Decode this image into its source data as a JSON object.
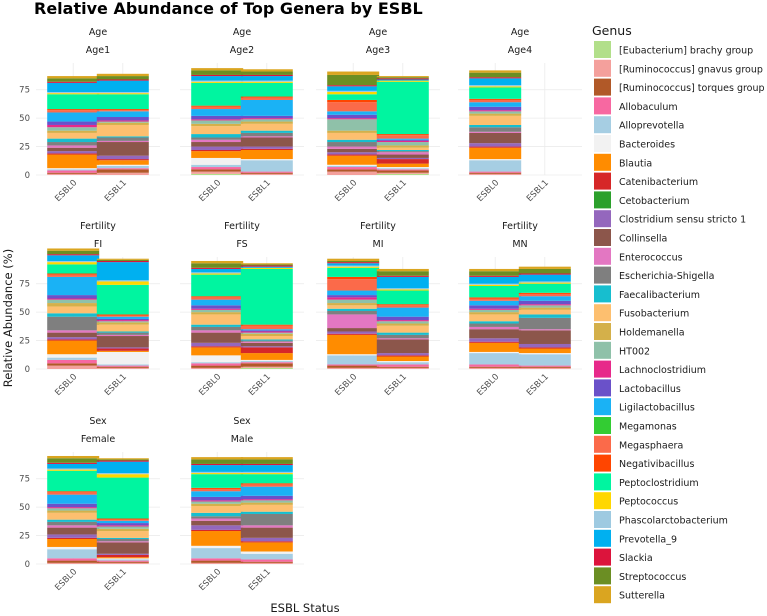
{
  "chart_data": {
    "type": "bar",
    "stacked": true,
    "title": "Relative Abundance of Top Genera by ESBL",
    "xlabel": "ESBL Status",
    "ylabel": "Relative Abundance (%)",
    "y_ticks": [
      0,
      25,
      50,
      75
    ],
    "categories": [
      "ESBL0",
      "ESBL1"
    ],
    "legend_title": "Genus",
    "genera": [
      {
        "name": "[Eubacterium] brachy group",
        "color": "#b2df8a"
      },
      {
        "name": "[Ruminococcus] gnavus group",
        "color": "#f4a09c"
      },
      {
        "name": "[Ruminococcus] torques group",
        "color": "#b15928"
      },
      {
        "name": "Allobaculum",
        "color": "#f768a1"
      },
      {
        "name": "Alloprevotella",
        "color": "#a6cee3"
      },
      {
        "name": "Bacteroides",
        "color": "#f2f2f2"
      },
      {
        "name": "Blautia",
        "color": "#ff8c00"
      },
      {
        "name": "Catenibacterium",
        "color": "#d62728"
      },
      {
        "name": "Cetobacterium",
        "color": "#2ca02c"
      },
      {
        "name": "Clostridium sensu stricto 1",
        "color": "#9467bd"
      },
      {
        "name": "Collinsella",
        "color": "#8c564b"
      },
      {
        "name": "Enterococcus",
        "color": "#e377c2"
      },
      {
        "name": "Escherichia-Shigella",
        "color": "#7f7f7f"
      },
      {
        "name": "Faecalibacterium",
        "color": "#17becf"
      },
      {
        "name": "Fusobacterium",
        "color": "#fdbf6f"
      },
      {
        "name": "Holdemanella",
        "color": "#d4b04a"
      },
      {
        "name": "HT002",
        "color": "#8fc1a9"
      },
      {
        "name": "Lachnoclostridium",
        "color": "#e7298a"
      },
      {
        "name": "Lactobacillus",
        "color": "#6a51c9"
      },
      {
        "name": "Ligilactobacillus",
        "color": "#1ab2f5"
      },
      {
        "name": "Megamonas",
        "color": "#33cc33"
      },
      {
        "name": "Megasphaera",
        "color": "#fb6a4a"
      },
      {
        "name": "Negativibacillus",
        "color": "#ff4500"
      },
      {
        "name": "Peptoclostridium",
        "color": "#00f5a0"
      },
      {
        "name": "Peptococcus",
        "color": "#ffd700"
      },
      {
        "name": "Phascolarctobacterium",
        "color": "#9ecae1"
      },
      {
        "name": "Prevotella_9",
        "color": "#00b0f0"
      },
      {
        "name": "Slackia",
        "color": "#dc143c"
      },
      {
        "name": "Streptococcus",
        "color": "#6b8e23"
      },
      {
        "name": "Sutterella",
        "color": "#daa520"
      }
    ],
    "panels": [
      {
        "group": "Age",
        "level": "Age1",
        "bars": [
          {
            "category": "ESBL0",
            "values": [
              0,
              1,
              1,
              2,
              1,
              1,
              12,
              1,
              0,
              2,
              3,
              2,
              3,
              3,
              5,
              2,
              3,
              2,
              3,
              8,
              0,
              2,
              1,
              13,
              1,
              1,
              8,
              1,
              3,
              2
            ]
          },
          {
            "category": "ESBL1",
            "values": [
              0,
              2,
              3,
              1,
              2,
              1,
              4,
              1,
              0,
              3,
              12,
              1,
              3,
              1,
              10,
              2,
              1,
              1,
              3,
              5,
              0,
              1,
              1,
              13,
              1,
              1,
              10,
              1,
              3,
              2
            ]
          }
        ]
      },
      {
        "group": "Age",
        "level": "Age2",
        "bars": [
          {
            "category": "ESBL0",
            "values": [
              1,
              2,
              2,
              2,
              2,
              6,
              6,
              1,
              0,
              3,
              4,
              2,
              2,
              3,
              7,
              2,
              3,
              1,
              3,
              6,
              0,
              2,
              1,
              20,
              1,
              1,
              4,
              1,
              4,
              2
            ]
          },
          {
            "category": "ESBL1",
            "values": [
              0,
              1,
              1,
              1,
              10,
              1,
              8,
              1,
              0,
              2,
              8,
              1,
              3,
              2,
              6,
              2,
              2,
              1,
              2,
              14,
              0,
              2,
              1,
              12,
              1,
              1,
              4,
              1,
              3,
              2
            ]
          }
        ]
      },
      {
        "group": "Age",
        "level": "Age3",
        "bars": [
          {
            "category": "ESBL0",
            "values": [
              0,
              3,
              2,
              2,
              1,
              1,
              8,
              1,
              0,
              2,
              3,
              2,
              4,
              2,
              6,
              2,
              10,
              1,
              3,
              3,
              0,
              8,
              2,
              5,
              2,
              1,
              4,
              1,
              9,
              3
            ]
          },
          {
            "category": "ESBL1",
            "values": [
              1,
              1,
              2,
              1,
              1,
              1,
              3,
              4,
              0,
              1,
              3,
              2,
              1,
              1,
              2,
              2,
              3,
              1,
              1,
              1,
              0,
              3,
              1,
              46,
              1,
              0,
              1,
              1,
              1,
              1
            ]
          }
        ]
      },
      {
        "group": "Age",
        "level": "Age4",
        "bars": [
          {
            "category": "ESBL0",
            "values": [
              0,
              1,
              1,
              1,
              10,
              1,
              10,
              1,
              0,
              3,
              9,
              1,
              4,
              2,
              8,
              2,
              2,
              1,
              3,
              4,
              0,
              2,
              1,
              10,
              1,
              1,
              6,
              1,
              4,
              2
            ]
          }
        ]
      },
      {
        "group": "Fertility",
        "level": "FI",
        "bars": [
          {
            "category": "ESBL0",
            "values": [
              0,
              3,
              2,
              3,
              2,
              3,
              12,
              1,
              0,
              2,
              4,
              2,
              12,
              3,
              6,
              3,
              3,
              1,
              3,
              16,
              0,
              2,
              1,
              8,
              2,
              1,
              5,
              1,
              3,
              2
            ]
          },
          {
            "category": "ESBL1",
            "values": [
              0,
              1,
              1,
              1,
              1,
              11,
              1,
              2,
              0,
              1,
              10,
              1,
              2,
              1,
              6,
              2,
              1,
              1,
              1,
              2,
              0,
              1,
              1,
              26,
              3,
              1,
              16,
              1,
              1,
              1
            ]
          }
        ]
      },
      {
        "group": "Fertility",
        "level": "FS",
        "bars": [
          {
            "category": "ESBL0",
            "values": [
              0,
              1,
              2,
              2,
              1,
              6,
              7,
              1,
              0,
              3,
              9,
              2,
              3,
              2,
              9,
              2,
              2,
              1,
              3,
              5,
              0,
              2,
              1,
              19,
              1,
              1,
              3,
              1,
              4,
              2
            ]
          },
          {
            "category": "ESBL1",
            "values": [
              1,
              1,
              3,
              1,
              1,
              1,
              6,
              5,
              0,
              1,
              3,
              1,
              1,
              1,
              3,
              2,
              1,
              1,
              1,
              1,
              0,
              3,
              1,
              49,
              1,
              0,
              1,
              1,
              1,
              1
            ]
          }
        ]
      },
      {
        "group": "Fertility",
        "level": "MI",
        "bars": [
          {
            "category": "ESBL0",
            "values": [
              0,
              1,
              2,
              1,
              8,
              1,
              17,
              1,
              0,
              2,
              3,
              12,
              3,
              2,
              3,
              2,
              3,
              2,
              2,
              4,
              0,
              10,
              2,
              8,
              1,
              1,
              2,
              1,
              1,
              2
            ]
          },
          {
            "category": "ESBL1",
            "values": [
              0,
              1,
              1,
              2,
              2,
              1,
              4,
              1,
              0,
              2,
              12,
              1,
              3,
              2,
              6,
              2,
              2,
              1,
              3,
              8,
              0,
              2,
              1,
              12,
              1,
              1,
              10,
              1,
              4,
              2
            ]
          }
        ]
      },
      {
        "group": "Fertility",
        "level": "MN",
        "bars": [
          {
            "category": "ESBL0",
            "values": [
              0,
              1,
              1,
              2,
              10,
              1,
              8,
              1,
              0,
              3,
              8,
              2,
              3,
              2,
              6,
              2,
              2,
              1,
              3,
              4,
              0,
              2,
              1,
              10,
              1,
              1,
              6,
              1,
              4,
              2
            ]
          },
          {
            "category": "ESBL1",
            "values": [
              0,
              1,
              1,
              1,
              10,
              1,
              4,
              1,
              0,
              3,
              12,
              1,
              10,
              3,
              4,
              2,
              2,
              1,
              3,
              4,
              0,
              2,
              1,
              8,
              1,
              1,
              6,
              1,
              4,
              2
            ]
          }
        ]
      },
      {
        "group": "Sex",
        "level": "Female",
        "bars": [
          {
            "category": "ESBL0",
            "values": [
              0,
              1,
              2,
              2,
              8,
              2,
              7,
              1,
              0,
              3,
              6,
              2,
              3,
              2,
              6,
              2,
              2,
              1,
              3,
              8,
              0,
              2,
              1,
              18,
              1,
              1,
              4,
              1,
              4,
              2
            ]
          },
          {
            "category": "ESBL1",
            "values": [
              0,
              1,
              1,
              1,
              1,
              1,
              1,
              2,
              0,
              1,
              10,
              1,
              2,
              1,
              6,
              2,
              2,
              1,
              2,
              2,
              0,
              1,
              1,
              36,
              3,
              1,
              10,
              1,
              1,
              1
            ]
          }
        ]
      },
      {
        "group": "Sex",
        "level": "Male",
        "bars": [
          {
            "category": "ESBL0",
            "values": [
              0,
              1,
              2,
              2,
              9,
              2,
              13,
              1,
              0,
              4,
              4,
              2,
              2,
              3,
              6,
              2,
              2,
              1,
              3,
              5,
              0,
              2,
              1,
              12,
              1,
              1,
              6,
              1,
              4,
              2
            ]
          },
          {
            "category": "ESBL1",
            "values": [
              0,
              1,
              1,
              2,
              5,
              2,
              8,
              1,
              0,
              3,
              9,
              2,
              10,
              2,
              6,
              2,
              2,
              1,
              3,
              8,
              0,
              2,
              1,
              8,
              1,
              1,
              6,
              1,
              4,
              2
            ]
          }
        ]
      }
    ]
  }
}
